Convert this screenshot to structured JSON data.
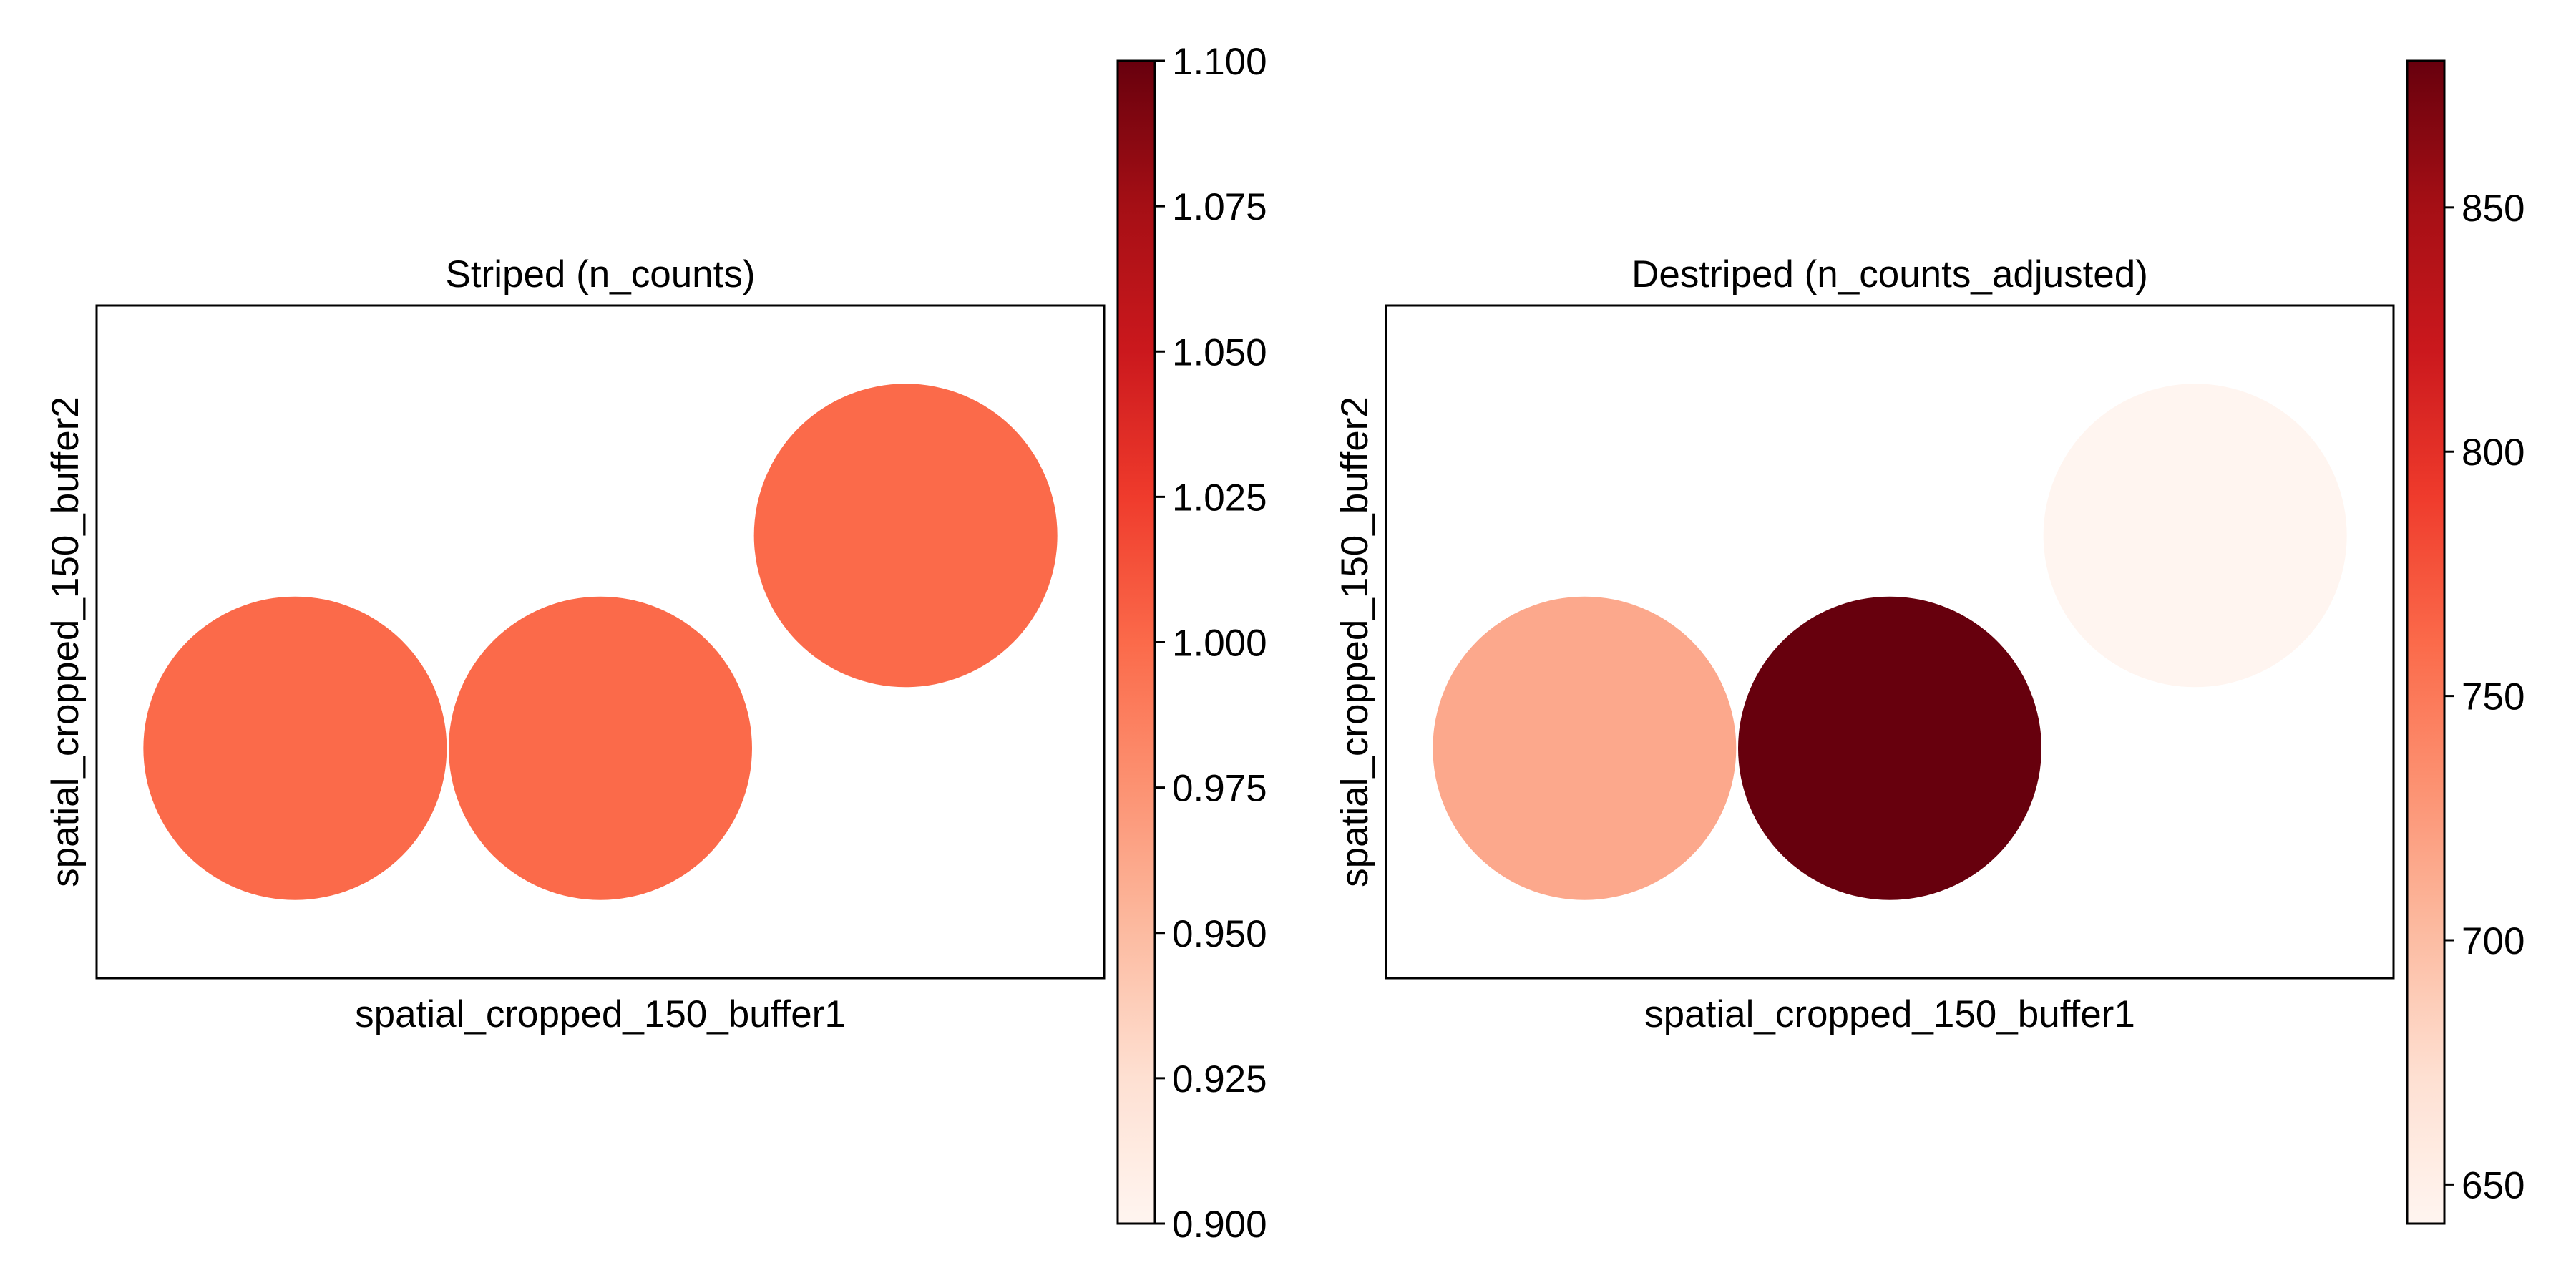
{
  "colormap": "Reds",
  "colors": {
    "reds_stops": [
      "#fff5f0",
      "#fee0d2",
      "#fcbba1",
      "#fc9272",
      "#fb6a4a",
      "#ef3b2c",
      "#cb181d",
      "#a50f15",
      "#67000d"
    ]
  },
  "chart_data": [
    {
      "type": "scatter",
      "title": "Striped (n_counts)",
      "xlabel": "spatial_cropped_150_buffer1",
      "ylabel": "spatial_cropped_150_buffer2",
      "grid": false,
      "x_ticks_shown": false,
      "y_ticks_shown": false,
      "points": [
        {
          "x": 0,
          "y": 0,
          "value": 1.0
        },
        {
          "x": 1,
          "y": 0,
          "value": 1.0
        },
        {
          "x": 2,
          "y": 1,
          "value": 1.0
        }
      ],
      "colorbar": {
        "vmin": 0.9,
        "vmax": 1.1,
        "ticks": [
          0.9,
          0.925,
          0.95,
          0.975,
          1.0,
          1.025,
          1.05,
          1.075,
          1.1
        ],
        "tick_labels": [
          "0.900",
          "0.925",
          "0.950",
          "0.975",
          "1.000",
          "1.025",
          "1.050",
          "1.075",
          "1.100"
        ]
      }
    },
    {
      "type": "scatter",
      "title": "Destriped (n_counts_adjusted)",
      "xlabel": "spatial_cropped_150_buffer1",
      "ylabel": "spatial_cropped_150_buffer2",
      "grid": false,
      "x_ticks_shown": false,
      "y_ticks_shown": false,
      "points": [
        {
          "x": 0,
          "y": 0,
          "value": 715
        },
        {
          "x": 1,
          "y": 0,
          "value": 880
        },
        {
          "x": 2,
          "y": 1,
          "value": 642
        }
      ],
      "colorbar": {
        "vmin": 642,
        "vmax": 880,
        "ticks": [
          650,
          700,
          750,
          800,
          850
        ],
        "tick_labels": [
          "650",
          "700",
          "750",
          "800",
          "850"
        ]
      }
    }
  ]
}
